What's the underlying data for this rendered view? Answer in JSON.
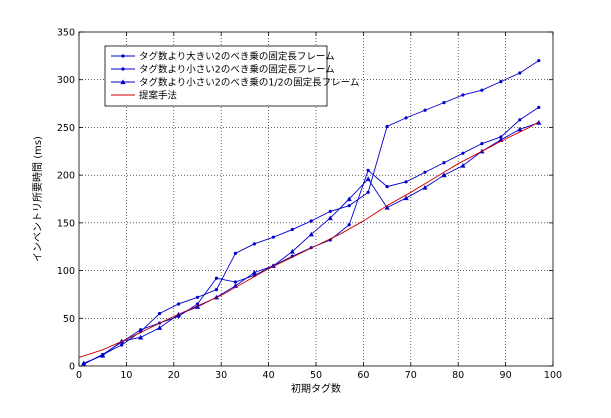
{
  "chart_data": {
    "type": "line",
    "title": "",
    "xlabel": "初期タグ数",
    "ylabel": "インベントリ所要時間 (ms)",
    "xlim": [
      0,
      100
    ],
    "ylim": [
      0,
      350
    ],
    "xticks": [
      0,
      10,
      20,
      30,
      40,
      50,
      60,
      70,
      80,
      90,
      100
    ],
    "yticks": [
      0,
      50,
      100,
      150,
      200,
      250,
      300,
      350
    ],
    "grid": true,
    "legend_position": "top-left",
    "series": [
      {
        "name": "タグ数より大きい2のべき乗の固定長フレーム",
        "color": "#0000cc",
        "marker": "dot",
        "x": [
          1,
          5,
          9,
          13,
          17,
          21,
          25,
          29,
          33,
          37,
          41,
          45,
          49,
          53,
          57,
          61,
          65,
          69,
          73,
          77,
          81,
          85,
          89,
          93,
          97
        ],
        "y": [
          2,
          12,
          22,
          36,
          55,
          65,
          72,
          80,
          118,
          128,
          135,
          143,
          152,
          162,
          168,
          182,
          251,
          260,
          268,
          276,
          284,
          289,
          298,
          307,
          320
        ]
      },
      {
        "name": "タグ数より小さい2のべき乗の固定長フレーム",
        "color": "#0000cc",
        "marker": "dot",
        "x": [
          1,
          5,
          9,
          13,
          17,
          21,
          25,
          29,
          33,
          37,
          41,
          45,
          49,
          53,
          57,
          61,
          65,
          69,
          73,
          77,
          81,
          85,
          89,
          93,
          97
        ],
        "y": [
          2,
          12,
          25,
          38,
          45,
          52,
          65,
          92,
          88,
          95,
          105,
          115,
          124,
          132,
          148,
          205,
          188,
          193,
          203,
          213,
          223,
          233,
          240,
          258,
          271
        ]
      },
      {
        "name": "タグ数より小さい2のべき乗の1/2の固定長フレーム",
        "color": "#0000cc",
        "marker": "triangle",
        "x": [
          1,
          5,
          9,
          13,
          17,
          21,
          25,
          29,
          33,
          37,
          41,
          45,
          49,
          53,
          57,
          61,
          65,
          69,
          73,
          77,
          81,
          85,
          89,
          93,
          97
        ],
        "y": [
          3,
          11,
          26,
          30,
          40,
          54,
          62,
          72,
          84,
          98,
          105,
          120,
          138,
          155,
          175,
          196,
          166,
          176,
          187,
          200,
          210,
          225,
          237,
          248,
          255
        ]
      },
      {
        "name": "提案手法",
        "color": "#cc0000",
        "marker": "none",
        "x": [
          0,
          5,
          10,
          15,
          20,
          25,
          30,
          35,
          40,
          45,
          50,
          55,
          60,
          65,
          70,
          75,
          80,
          85,
          90,
          95,
          97
        ],
        "y": [
          9,
          17,
          28,
          40,
          52,
          63,
          74,
          88,
          102,
          114,
          126,
          138,
          152,
          168,
          182,
          197,
          212,
          225,
          238,
          250,
          256
        ]
      }
    ]
  }
}
